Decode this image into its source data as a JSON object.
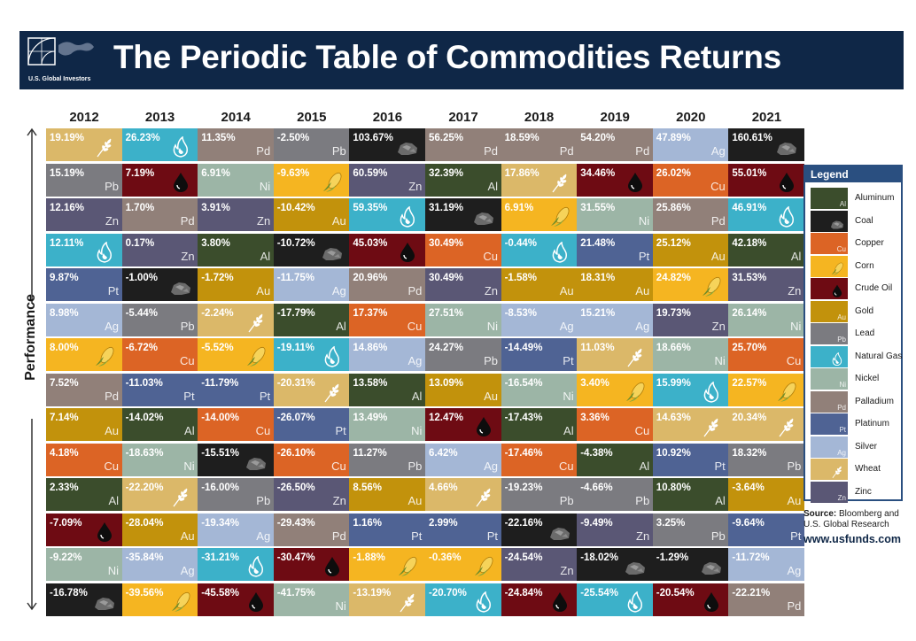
{
  "header": {
    "title": "The Periodic Table of Commodities Returns",
    "logo_text": "U.S. Global Investors"
  },
  "axis_label": "Performance",
  "legend": {
    "title": "Legend",
    "items": [
      {
        "key": "Al",
        "name": "Aluminum",
        "color": "#3b4d2c",
        "icon": "aluminum-symbol"
      },
      {
        "key": "Coal",
        "name": "Coal",
        "color": "#1e1e1e",
        "icon": "coal-icon"
      },
      {
        "key": "Cu",
        "name": "Copper",
        "color": "#dc6425",
        "icon": "copper-symbol"
      },
      {
        "key": "Corn",
        "name": "Corn",
        "color": "#f5b521",
        "icon": "corn-icon"
      },
      {
        "key": "Oil",
        "name": "Crude Oil",
        "color": "#6e0b13",
        "icon": "oil-drop-icon"
      },
      {
        "key": "Au",
        "name": "Gold",
        "color": "#c2920c",
        "icon": "gold-symbol"
      },
      {
        "key": "Pb",
        "name": "Lead",
        "color": "#7b7b80",
        "icon": "lead-symbol"
      },
      {
        "key": "Gas",
        "name": "Natural Gas",
        "color": "#3cb1c9",
        "icon": "flame-icon"
      },
      {
        "key": "Ni",
        "name": "Nickel",
        "color": "#9cb5a6",
        "icon": "nickel-symbol"
      },
      {
        "key": "Pd",
        "name": "Palladium",
        "color": "#918079",
        "icon": "palladium-symbol"
      },
      {
        "key": "Pt",
        "name": "Platinum",
        "color": "#4f6394",
        "icon": "platinum-symbol"
      },
      {
        "key": "Ag",
        "name": "Silver",
        "color": "#a4b7d6",
        "icon": "silver-symbol"
      },
      {
        "key": "Wheat",
        "name": "Wheat",
        "color": "#dbb869",
        "icon": "wheat-icon"
      },
      {
        "key": "Zn",
        "name": "Zinc",
        "color": "#5a5775",
        "icon": "zinc-symbol"
      }
    ]
  },
  "source": {
    "label": "Source:",
    "text": "Bloomberg and U.S. Global Research"
  },
  "url": "www.usfunds.com",
  "chart_data": {
    "type": "table",
    "title": "The Periodic Table of Commodities Returns",
    "ylabel": "Performance",
    "years": [
      "2012",
      "2013",
      "2014",
      "2015",
      "2016",
      "2017",
      "2018",
      "2019",
      "2020",
      "2021"
    ],
    "columns": [
      {
        "year": "2012",
        "cells": [
          {
            "value": "19.19%",
            "key": "Wheat"
          },
          {
            "value": "15.19%",
            "key": "Pb"
          },
          {
            "value": "12.16%",
            "key": "Zn"
          },
          {
            "value": "12.11%",
            "key": "Gas"
          },
          {
            "value": "9.87%",
            "key": "Pt"
          },
          {
            "value": "8.98%",
            "key": "Ag"
          },
          {
            "value": "8.00%",
            "key": "Corn"
          },
          {
            "value": "7.52%",
            "key": "Pd"
          },
          {
            "value": "7.14%",
            "key": "Au"
          },
          {
            "value": "4.18%",
            "key": "Cu"
          },
          {
            "value": "2.33%",
            "key": "Al"
          },
          {
            "value": "-7.09%",
            "key": "Oil"
          },
          {
            "value": "-9.22%",
            "key": "Ni"
          },
          {
            "value": "-16.78%",
            "key": "Coal"
          }
        ]
      },
      {
        "year": "2013",
        "cells": [
          {
            "value": "26.23%",
            "key": "Gas"
          },
          {
            "value": "7.19%",
            "key": "Oil"
          },
          {
            "value": "1.70%",
            "key": "Pd"
          },
          {
            "value": "0.17%",
            "key": "Zn"
          },
          {
            "value": "-1.00%",
            "key": "Coal"
          },
          {
            "value": "-5.44%",
            "key": "Pb"
          },
          {
            "value": "-6.72%",
            "key": "Cu"
          },
          {
            "value": "-11.03%",
            "key": "Pt"
          },
          {
            "value": "-14.02%",
            "key": "Al"
          },
          {
            "value": "-18.63%",
            "key": "Ni"
          },
          {
            "value": "-22.20%",
            "key": "Wheat"
          },
          {
            "value": "-28.04%",
            "key": "Au"
          },
          {
            "value": "-35.84%",
            "key": "Ag"
          },
          {
            "value": "-39.56%",
            "key": "Corn"
          }
        ]
      },
      {
        "year": "2014",
        "cells": [
          {
            "value": "11.35%",
            "key": "Pd"
          },
          {
            "value": "6.91%",
            "key": "Ni"
          },
          {
            "value": "3.91%",
            "key": "Zn"
          },
          {
            "value": "3.80%",
            "key": "Al"
          },
          {
            "value": "-1.72%",
            "key": "Au"
          },
          {
            "value": "-2.24%",
            "key": "Wheat"
          },
          {
            "value": "-5.52%",
            "key": "Corn"
          },
          {
            "value": "-11.79%",
            "key": "Pt"
          },
          {
            "value": "-14.00%",
            "key": "Cu"
          },
          {
            "value": "-15.51%",
            "key": "Coal"
          },
          {
            "value": "-16.00%",
            "key": "Pb"
          },
          {
            "value": "-19.34%",
            "key": "Ag"
          },
          {
            "value": "-31.21%",
            "key": "Gas"
          },
          {
            "value": "-45.58%",
            "key": "Oil"
          }
        ]
      },
      {
        "year": "2015",
        "cells": [
          {
            "value": "-2.50%",
            "key": "Pb"
          },
          {
            "value": "-9.63%",
            "key": "Corn"
          },
          {
            "value": "-10.42%",
            "key": "Au"
          },
          {
            "value": "-10.72%",
            "key": "Coal"
          },
          {
            "value": "-11.75%",
            "key": "Ag"
          },
          {
            "value": "-17.79%",
            "key": "Al"
          },
          {
            "value": "-19.11%",
            "key": "Gas"
          },
          {
            "value": "-20.31%",
            "key": "Wheat"
          },
          {
            "value": "-26.07%",
            "key": "Pt"
          },
          {
            "value": "-26.10%",
            "key": "Cu"
          },
          {
            "value": "-26.50%",
            "key": "Zn"
          },
          {
            "value": "-29.43%",
            "key": "Pd"
          },
          {
            "value": "-30.47%",
            "key": "Oil"
          },
          {
            "value": "-41.75%",
            "key": "Ni"
          }
        ]
      },
      {
        "year": "2016",
        "cells": [
          {
            "value": "103.67%",
            "key": "Coal"
          },
          {
            "value": "60.59%",
            "key": "Zn"
          },
          {
            "value": "59.35%",
            "key": "Gas"
          },
          {
            "value": "45.03%",
            "key": "Oil"
          },
          {
            "value": "20.96%",
            "key": "Pd"
          },
          {
            "value": "17.37%",
            "key": "Cu"
          },
          {
            "value": "14.86%",
            "key": "Ag"
          },
          {
            "value": "13.58%",
            "key": "Al"
          },
          {
            "value": "13.49%",
            "key": "Ni"
          },
          {
            "value": "11.27%",
            "key": "Pb"
          },
          {
            "value": "8.56%",
            "key": "Au"
          },
          {
            "value": "1.16%",
            "key": "Pt"
          },
          {
            "value": "-1.88%",
            "key": "Corn"
          },
          {
            "value": "-13.19%",
            "key": "Wheat"
          }
        ]
      },
      {
        "year": "2017",
        "cells": [
          {
            "value": "56.25%",
            "key": "Pd"
          },
          {
            "value": "32.39%",
            "key": "Al"
          },
          {
            "value": "31.19%",
            "key": "Coal"
          },
          {
            "value": "30.49%",
            "key": "Cu"
          },
          {
            "value": "30.49%",
            "key": "Zn"
          },
          {
            "value": "27.51%",
            "key": "Ni"
          },
          {
            "value": "24.27%",
            "key": "Pb"
          },
          {
            "value": "13.09%",
            "key": "Au"
          },
          {
            "value": "12.47%",
            "key": "Oil"
          },
          {
            "value": "6.42%",
            "key": "Ag"
          },
          {
            "value": "4.66%",
            "key": "Wheat"
          },
          {
            "value": "2.99%",
            "key": "Pt"
          },
          {
            "value": "-0.36%",
            "key": "Corn"
          },
          {
            "value": "-20.70%",
            "key": "Gas"
          }
        ]
      },
      {
        "year": "2018",
        "cells": [
          {
            "value": "18.59%",
            "key": "Pd"
          },
          {
            "value": "17.86%",
            "key": "Wheat"
          },
          {
            "value": "6.91%",
            "key": "Corn"
          },
          {
            "value": "-0.44%",
            "key": "Gas"
          },
          {
            "value": "-1.58%",
            "key": "Au"
          },
          {
            "value": "-8.53%",
            "key": "Ag"
          },
          {
            "value": "-14.49%",
            "key": "Pt"
          },
          {
            "value": "-16.54%",
            "key": "Ni"
          },
          {
            "value": "-17.43%",
            "key": "Al"
          },
          {
            "value": "-17.46%",
            "key": "Cu"
          },
          {
            "value": "-19.23%",
            "key": "Pb"
          },
          {
            "value": "-22.16%",
            "key": "Coal"
          },
          {
            "value": "-24.54%",
            "key": "Zn"
          },
          {
            "value": "-24.84%",
            "key": "Oil"
          }
        ]
      },
      {
        "year": "2019",
        "cells": [
          {
            "value": "54.20%",
            "key": "Pd"
          },
          {
            "value": "34.46%",
            "key": "Oil"
          },
          {
            "value": "31.55%",
            "key": "Ni"
          },
          {
            "value": "21.48%",
            "key": "Pt"
          },
          {
            "value": "18.31%",
            "key": "Au"
          },
          {
            "value": "15.21%",
            "key": "Ag"
          },
          {
            "value": "11.03%",
            "key": "Wheat"
          },
          {
            "value": "3.40%",
            "key": "Corn"
          },
          {
            "value": "3.36%",
            "key": "Cu"
          },
          {
            "value": "-4.38%",
            "key": "Al"
          },
          {
            "value": "-4.66%",
            "key": "Pb"
          },
          {
            "value": "-9.49%",
            "key": "Zn"
          },
          {
            "value": "-18.02%",
            "key": "Coal"
          },
          {
            "value": "-25.54%",
            "key": "Gas"
          }
        ]
      },
      {
        "year": "2020",
        "cells": [
          {
            "value": "47.89%",
            "key": "Ag"
          },
          {
            "value": "26.02%",
            "key": "Cu"
          },
          {
            "value": "25.86%",
            "key": "Pd"
          },
          {
            "value": "25.12%",
            "key": "Au"
          },
          {
            "value": "24.82%",
            "key": "Corn"
          },
          {
            "value": "19.73%",
            "key": "Zn"
          },
          {
            "value": "18.66%",
            "key": "Ni"
          },
          {
            "value": "15.99%",
            "key": "Gas"
          },
          {
            "value": "14.63%",
            "key": "Wheat"
          },
          {
            "value": "10.92%",
            "key": "Pt"
          },
          {
            "value": "10.80%",
            "key": "Al"
          },
          {
            "value": "3.25%",
            "key": "Pb"
          },
          {
            "value": "-1.29%",
            "key": "Coal"
          },
          {
            "value": "-20.54%",
            "key": "Oil"
          }
        ]
      },
      {
        "year": "2021",
        "cells": [
          {
            "value": "160.61%",
            "key": "Coal"
          },
          {
            "value": "55.01%",
            "key": "Oil"
          },
          {
            "value": "46.91%",
            "key": "Gas"
          },
          {
            "value": "42.18%",
            "key": "Al"
          },
          {
            "value": "31.53%",
            "key": "Zn"
          },
          {
            "value": "26.14%",
            "key": "Ni"
          },
          {
            "value": "25.70%",
            "key": "Cu"
          },
          {
            "value": "22.57%",
            "key": "Corn"
          },
          {
            "value": "20.34%",
            "key": "Wheat"
          },
          {
            "value": "18.32%",
            "key": "Pb"
          },
          {
            "value": "-3.64%",
            "key": "Au"
          },
          {
            "value": "-9.64%",
            "key": "Pt"
          },
          {
            "value": "-11.72%",
            "key": "Ag"
          },
          {
            "value": "-22.21%",
            "key": "Pd"
          }
        ]
      }
    ]
  }
}
